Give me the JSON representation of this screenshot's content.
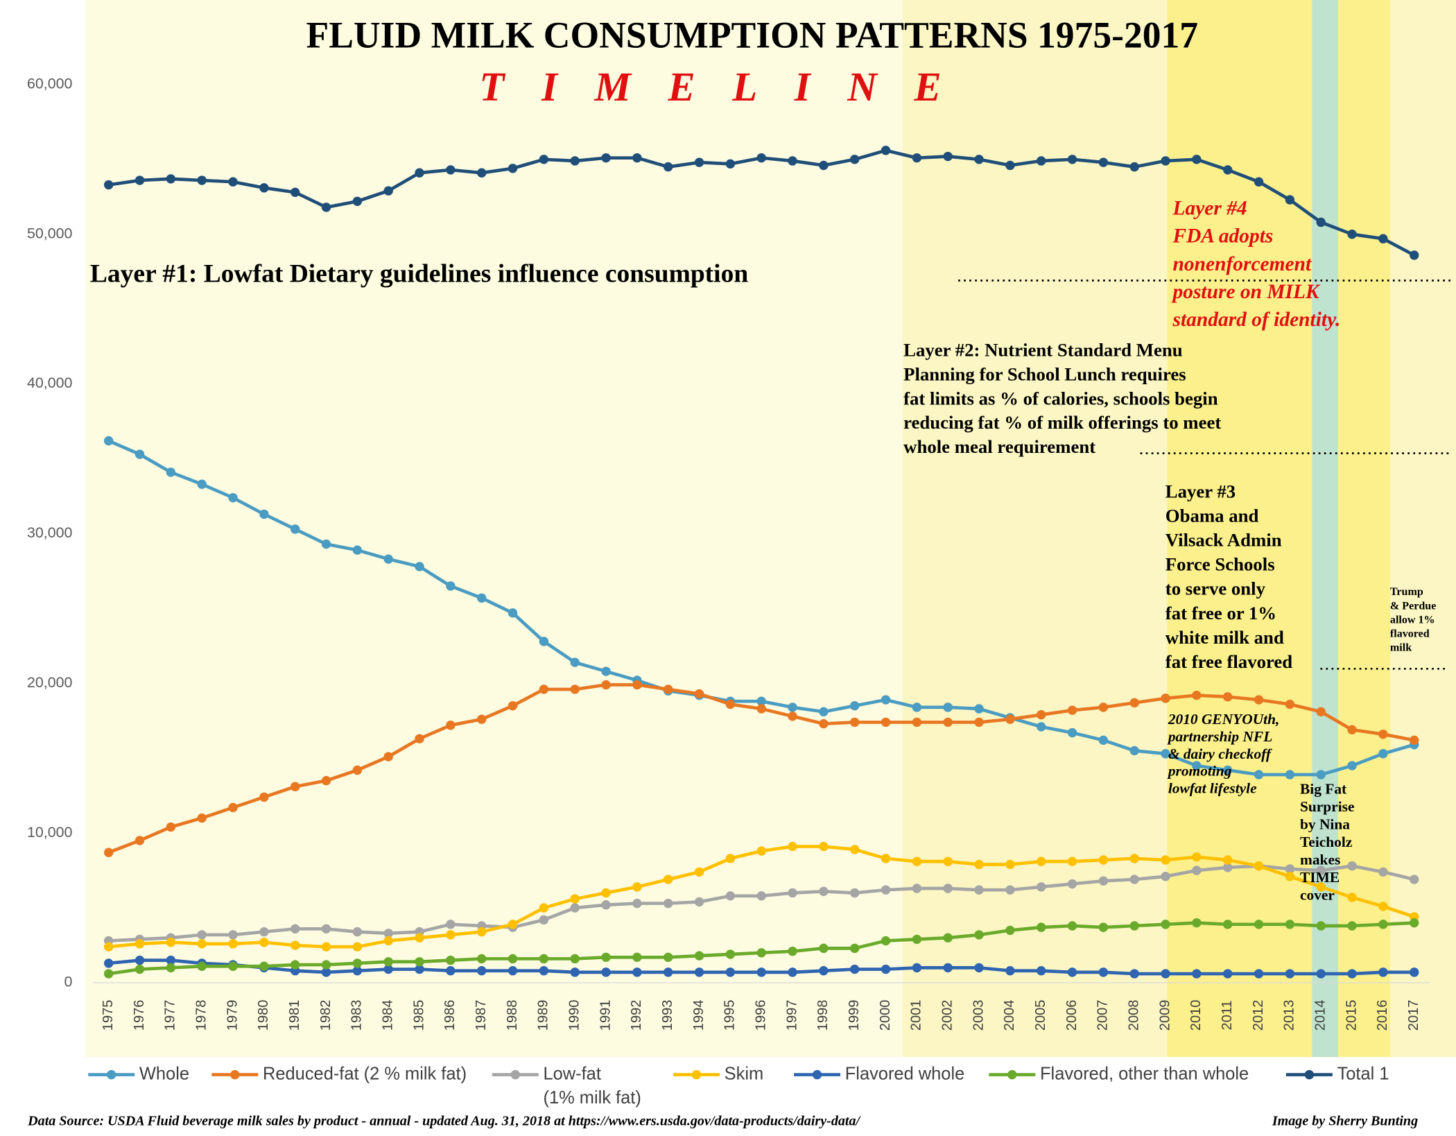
{
  "chart_data": {
    "type": "line",
    "title": "FLUID MILK CONSUMPTION PATTERNS 1975-2017",
    "subtitle": "TIMELINE",
    "categories": [
      "1975",
      "1976",
      "1977",
      "1978",
      "1979",
      "1980",
      "1981",
      "1982",
      "1983",
      "1984",
      "1985",
      "1986",
      "1987",
      "1988",
      "1989",
      "1990",
      "1991",
      "1992",
      "1993",
      "1994",
      "1995",
      "1996",
      "1997",
      "1998",
      "1999",
      "2000",
      "2001",
      "2002",
      "2003",
      "2004",
      "2005",
      "2006",
      "2007",
      "2008",
      "2009",
      "2010",
      "2011",
      "2012",
      "2013",
      "2014",
      "2015",
      "2016",
      "2017"
    ],
    "series": [
      {
        "name": "Whole",
        "color": "#4a9cc2",
        "values": [
          36200,
          35300,
          34100,
          33300,
          32400,
          31300,
          30300,
          29300,
          28900,
          28300,
          27800,
          26500,
          25700,
          24700,
          22800,
          21400,
          20800,
          20200,
          19500,
          19200,
          18800,
          18800,
          18400,
          18100,
          18500,
          18900,
          18400,
          18400,
          18300,
          17700,
          17100,
          16700,
          16200,
          15500,
          15300,
          14500,
          14200,
          13900,
          13900,
          13900,
          14500,
          15300,
          15900
        ]
      },
      {
        "name": "Reduced-fat (2 % milk fat)",
        "color": "#e87722",
        "values": [
          8700,
          9500,
          10400,
          11000,
          11700,
          12400,
          13100,
          13500,
          14200,
          15100,
          16300,
          17200,
          17600,
          18500,
          19600,
          19600,
          19900,
          19900,
          19600,
          19300,
          18600,
          18300,
          17800,
          17300,
          17400,
          17400,
          17400,
          17400,
          17400,
          17600,
          17900,
          18200,
          18400,
          18700,
          19000,
          19200,
          19100,
          18900,
          18600,
          18100,
          16900,
          16600,
          16200
        ]
      },
      {
        "name": "Low-fat",
        "name_line2": "(1% milk fat)",
        "color": "#a5a5a5",
        "values": [
          2800,
          2900,
          3000,
          3200,
          3200,
          3400,
          3600,
          3600,
          3400,
          3300,
          3400,
          3900,
          3800,
          3700,
          4200,
          5000,
          5200,
          5300,
          5300,
          5400,
          5800,
          5800,
          6000,
          6100,
          6000,
          6200,
          6300,
          6300,
          6200,
          6200,
          6400,
          6600,
          6800,
          6900,
          7100,
          7500,
          7700,
          7800,
          7600,
          7500,
          7800,
          7400,
          6900
        ]
      },
      {
        "name": "Skim",
        "color": "#ffc000",
        "values": [
          2400,
          2600,
          2700,
          2600,
          2600,
          2700,
          2500,
          2400,
          2400,
          2800,
          3000,
          3200,
          3400,
          3900,
          5000,
          5600,
          6000,
          6400,
          6900,
          7400,
          8300,
          8800,
          9100,
          9100,
          8900,
          8300,
          8100,
          8100,
          7900,
          7900,
          8100,
          8100,
          8200,
          8300,
          8200,
          8400,
          8200,
          7800,
          7100,
          6400,
          5700,
          5100,
          4400
        ]
      },
      {
        "name": "Flavored whole",
        "color": "#2e64b0",
        "values": [
          1300,
          1500,
          1500,
          1300,
          1200,
          1000,
          800,
          700,
          800,
          900,
          900,
          800,
          800,
          800,
          800,
          700,
          700,
          700,
          700,
          700,
          700,
          700,
          700,
          800,
          900,
          900,
          1000,
          1000,
          1000,
          800,
          800,
          700,
          700,
          600,
          600,
          600,
          600,
          600,
          600,
          600,
          600,
          700,
          700
        ]
      },
      {
        "name": "Flavored, other than whole",
        "color": "#6aaa2a",
        "values": [
          600,
          900,
          1000,
          1100,
          1100,
          1100,
          1200,
          1200,
          1300,
          1400,
          1400,
          1500,
          1600,
          1600,
          1600,
          1600,
          1700,
          1700,
          1700,
          1800,
          1900,
          2000,
          2100,
          2300,
          2300,
          2800,
          2900,
          3000,
          3200,
          3500,
          3700,
          3800,
          3700,
          3800,
          3900,
          4000,
          3900,
          3900,
          3900,
          3800,
          3800,
          3900,
          4000
        ]
      },
      {
        "name": "Total 1",
        "color": "#1f4e79",
        "values": [
          53300,
          53600,
          53700,
          53600,
          53500,
          53100,
          52800,
          51800,
          52200,
          52900,
          54100,
          54300,
          54100,
          54400,
          55000,
          54900,
          55100,
          55100,
          54500,
          54800,
          54700,
          55100,
          54900,
          54600,
          55000,
          55600,
          55100,
          55200,
          55000,
          54600,
          54900,
          55000,
          54800,
          54500,
          54900,
          55000,
          54300,
          53500,
          52300,
          50800,
          50000,
          49700,
          48600
        ]
      }
    ],
    "ylim": [
      0,
      60000
    ],
    "yticks": [
      0,
      {
        "value": 10000,
        "label": "10,000"
      },
      {
        "value": 20000,
        "label": "20,000"
      },
      {
        "value": 30000,
        "label": "30,000"
      },
      {
        "value": 40000,
        "label": "40,000"
      },
      {
        "value": 50000,
        "label": "50,000"
      },
      {
        "value": 60000,
        "label": "60,000"
      }
    ],
    "grid": false,
    "annotations": [
      {
        "lines": [
          "Layer #1: Lowfat Dietary guidelines influence consumption"
        ]
      },
      {
        "lines": [
          "Layer #2: Nutrient Standard Menu",
          "Planning for School Lunch requires",
          "fat limits as % of calories, schools begin",
          "reducing fat % of milk offerings to meet",
          "whole meal requirement"
        ]
      },
      {
        "lines": [
          "Layer #3",
          "Obama and",
          "Vilsack Admin",
          "Force Schools",
          "to serve only",
          "fat free or 1%",
          "white milk and",
          "fat free flavored"
        ]
      },
      {
        "lines": [
          "Layer #4",
          "FDA adopts",
          "nonenforcement",
          "posture on MILK",
          "standard of identity."
        ]
      },
      {
        "lines": [
          "Trump",
          "& Perdue",
          "allow 1%",
          "flavored",
          "milk"
        ]
      },
      {
        "lines": [
          "2010 GENYOUth,",
          "partnership NFL",
          "& dairy checkoff",
          "promoting",
          "lowfat lifestyle"
        ]
      },
      {
        "lines": [
          "Big Fat",
          "Surprise",
          "by Nina",
          "Teicholz",
          "makes",
          "TIME",
          "cover"
        ]
      }
    ],
    "source": "Data Source: USDA Fluid beverage milk sales by product - annual - updated Aug. 31, 2018 at https://www.ers.usda.gov/data-products/dairy-data/",
    "credit": "Image by Sherry Bunting"
  }
}
